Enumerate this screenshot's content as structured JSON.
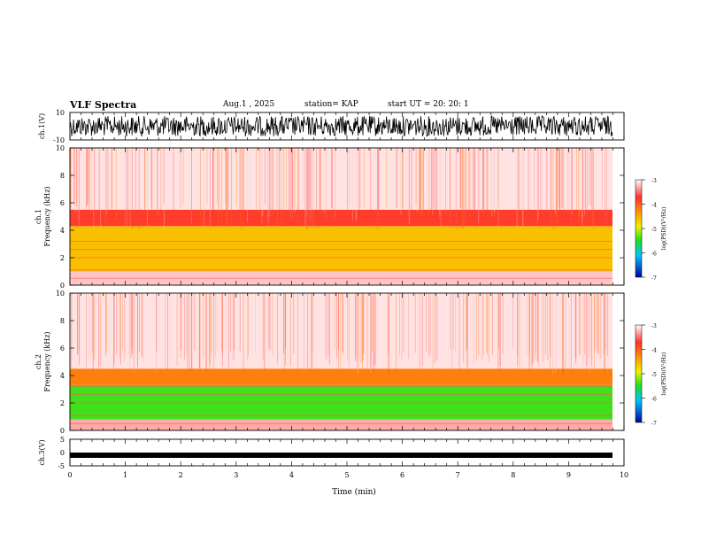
{
  "header": {
    "title": "VLF Spectra",
    "date": "Aug.1 , 2025",
    "station": "station= KAP",
    "start": "start UT = 20: 20: 1"
  },
  "chart_data": [
    {
      "type": "line",
      "name": "ch1-waveform",
      "ylabel": "ch.1(V)",
      "ylim": [
        -10,
        10
      ],
      "yticks": [
        "10",
        "-10"
      ],
      "xlim": [
        0,
        10
      ],
      "description_values": "dense oscillating signal spanning full range"
    },
    {
      "type": "heatmap",
      "name": "ch1-spectrogram",
      "ylabel_line1": "ch.1",
      "ylabel_line2": "Frequency (kHz)",
      "ylim": [
        0,
        10
      ],
      "yticks": [
        "0",
        "2",
        "4",
        "6",
        "8",
        "10"
      ],
      "colorbar": {
        "label": "log(PSD)(V²/Hz)",
        "ticks": [
          "-3",
          "-4",
          "-5",
          "-6",
          "-7"
        ],
        "range": [
          -7,
          -3
        ]
      },
      "bands": [
        {
          "from_khz": 0.0,
          "to_khz": 1.0,
          "level": -3.2
        },
        {
          "from_khz": 1.0,
          "to_khz": 4.3,
          "level": -4.6
        },
        {
          "from_khz": 4.3,
          "to_khz": 5.5,
          "level": -3.8
        },
        {
          "from_khz": 5.5,
          "to_khz": 10.0,
          "level": -3.1
        }
      ]
    },
    {
      "type": "heatmap",
      "name": "ch2-spectrogram",
      "ylabel_line1": "ch.2",
      "ylabel_line2": "Frequency (kHz)",
      "ylim": [
        0,
        10
      ],
      "yticks": [
        "0",
        "2",
        "4",
        "6",
        "8",
        "10"
      ],
      "colorbar": {
        "label": "log(PSD)(V²/Hz)",
        "ticks": [
          "-3",
          "-4",
          "-5",
          "-6",
          "-7"
        ],
        "range": [
          -7,
          -3
        ]
      },
      "bands": [
        {
          "from_khz": 0.0,
          "to_khz": 0.8,
          "level": -3.3
        },
        {
          "from_khz": 0.8,
          "to_khz": 3.3,
          "level": -5.4
        },
        {
          "from_khz": 3.3,
          "to_khz": 4.5,
          "level": -4.2
        },
        {
          "from_khz": 4.5,
          "to_khz": 10.0,
          "level": -3.1
        }
      ]
    },
    {
      "type": "line",
      "name": "ch3-waveform",
      "ylabel": "ch.3(V)",
      "ylim": [
        -5,
        5
      ],
      "yticks": [
        "5",
        "0",
        "-5"
      ],
      "level_v": -1.0
    }
  ],
  "xaxis": {
    "label": "Time (min)",
    "ticks": [
      "0",
      "1",
      "2",
      "3",
      "4",
      "5",
      "6",
      "7",
      "8",
      "9",
      "10"
    ],
    "range": [
      0,
      10
    ]
  }
}
